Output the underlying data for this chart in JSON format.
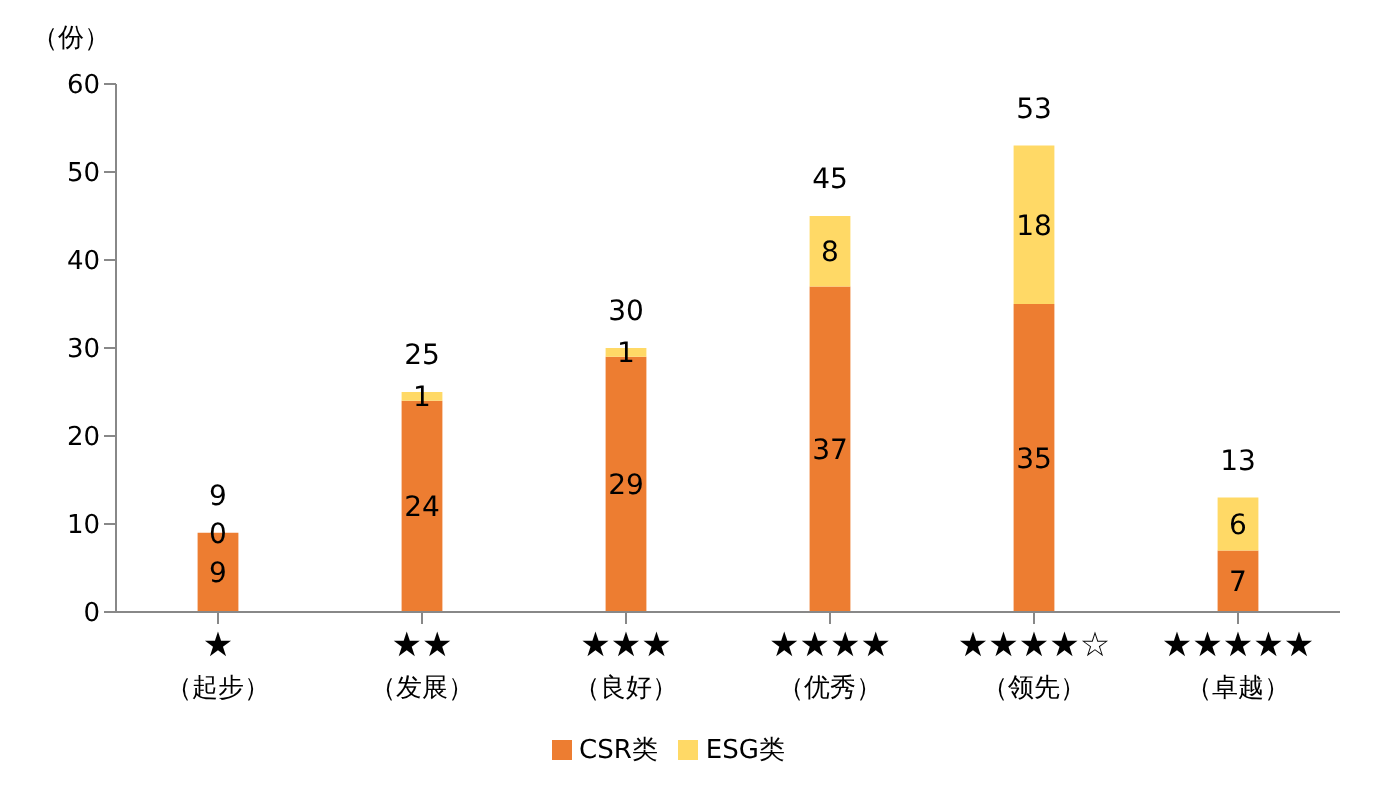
{
  "chart_data": {
    "type": "bar",
    "ylabel": "（份）",
    "categories": [
      "★\n（起步）",
      "★★\n（发展）",
      "★★★\n（良好）",
      "★★★★\n（优秀）",
      "★★★★☆\n（领先）",
      "★★★★★\n（卓越）"
    ],
    "series": [
      {
        "name": "CSR类",
        "color": "#ed7d31",
        "values": [
          9,
          24,
          29,
          37,
          35,
          7
        ]
      },
      {
        "name": "ESG类",
        "color": "#ffd966",
        "values": [
          0,
          1,
          1,
          8,
          18,
          6
        ]
      }
    ],
    "stacked": true,
    "data_labels": true,
    "totals": [
      "9",
      "25",
      "30",
      "45",
      "53",
      "13"
    ],
    "ylim": [
      0,
      60
    ],
    "yticks": [
      0,
      10,
      20,
      30,
      40,
      50,
      60
    ],
    "grid": false,
    "legend": "bottom"
  }
}
